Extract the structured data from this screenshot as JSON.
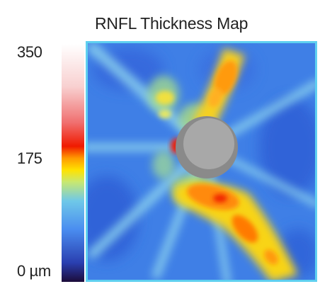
{
  "chart_data": {
    "type": "heatmap",
    "title": "RNFL Thickness Map",
    "colorbar": {
      "ticks": [
        "350",
        "175",
        "0 µm"
      ],
      "range": [
        0,
        350
      ],
      "unit": "µm",
      "colors": [
        "#1c0b3a",
        "#2a3fb0",
        "#4a8df0",
        "#6fc8e8",
        "#c8e870",
        "#ffe200",
        "#ff9a00",
        "#f01a00",
        "#f07070",
        "#ffffff"
      ]
    },
    "colors": {
      "map_background": "#3f80e8",
      "map_border": "#5fd0f0",
      "optic_disc_outer": "#8a8a8a",
      "optic_disc_inner": "#a8a8a8"
    }
  }
}
